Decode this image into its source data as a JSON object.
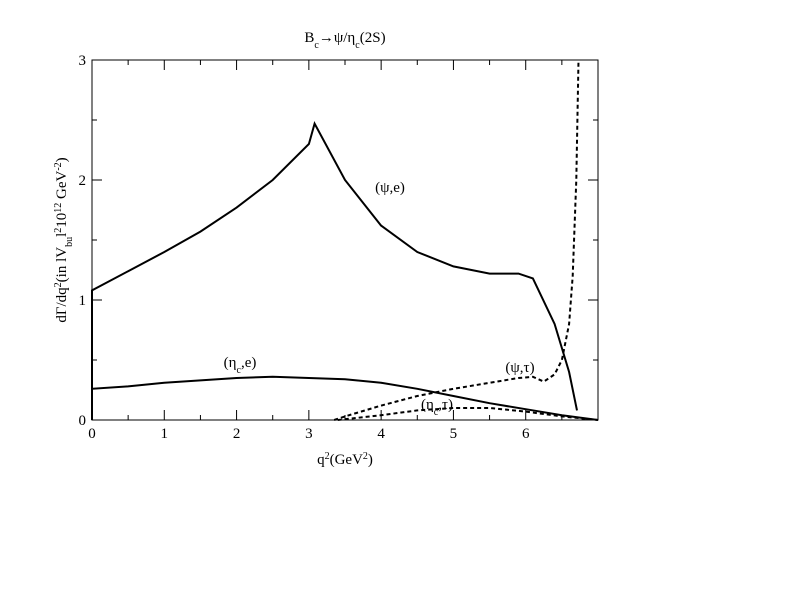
{
  "chart_data": {
    "type": "line",
    "title": [
      {
        "t": "B"
      },
      {
        "t": "c",
        "s": "sub"
      },
      {
        "t": "→ψ/η"
      },
      {
        "t": "c",
        "s": "sub"
      },
      {
        "t": "(2S)"
      }
    ],
    "x_label": [
      {
        "t": "q"
      },
      {
        "t": "2",
        "s": "sup"
      },
      {
        "t": "(GeV"
      },
      {
        "t": "2",
        "s": "sup"
      },
      {
        "t": ")"
      }
    ],
    "y_label": [
      {
        "t": "dΓ/dq"
      },
      {
        "t": "2",
        "s": "sup"
      },
      {
        "t": "(in lV"
      },
      {
        "t": "bu",
        "s": "sub"
      },
      {
        "t": "l"
      },
      {
        "t": "2",
        "s": "sup"
      },
      {
        "t": "10"
      },
      {
        "t": "12",
        "s": "sup"
      },
      {
        "t": " GeV"
      },
      {
        "t": "-2",
        "s": "sup"
      },
      {
        "t": ")"
      }
    ],
    "xlim": [
      0,
      7
    ],
    "ylim": [
      0,
      3
    ],
    "xticks": [
      0,
      1,
      2,
      3,
      4,
      5,
      6
    ],
    "yticks": [
      0,
      1,
      2,
      3
    ],
    "xminorticks": [
      0.5,
      1.5,
      2.5,
      3.5,
      4.5,
      5.5,
      6.5
    ],
    "yminorticks": [
      0.5,
      1.5,
      2.5
    ],
    "series": [
      {
        "name": [
          {
            "t": "(ψ,e)"
          }
        ],
        "color": "#000",
        "dash": false,
        "x": [
          0,
          0,
          0.5,
          1,
          1.5,
          2,
          2.5,
          3,
          3.08,
          3.5,
          4,
          4.5,
          5,
          5.5,
          5.9,
          6.1,
          6.4,
          6.6,
          6.71
        ],
        "values": [
          0,
          1.08,
          1.24,
          1.4,
          1.57,
          1.77,
          2.0,
          2.3,
          2.47,
          2.0,
          1.62,
          1.4,
          1.28,
          1.22,
          1.22,
          1.18,
          0.8,
          0.4,
          0.08
        ]
      },
      {
        "name": [
          {
            "t": "(η"
          },
          {
            "t": "c",
            "s": "sub"
          },
          {
            "t": ",e)"
          }
        ],
        "color": "#000",
        "dash": false,
        "x": [
          0,
          0,
          0.5,
          1,
          1.5,
          2,
          2.5,
          3,
          3.5,
          4,
          4.5,
          5,
          5.5,
          6,
          6.5,
          7
        ],
        "values": [
          0,
          0.26,
          0.28,
          0.31,
          0.33,
          0.35,
          0.36,
          0.35,
          0.34,
          0.31,
          0.26,
          0.2,
          0.14,
          0.09,
          0.04,
          0
        ]
      },
      {
        "name": [
          {
            "t": "(ψ,τ)"
          }
        ],
        "color": "#000",
        "dash": true,
        "x": [
          3.35,
          3.5,
          4,
          4.5,
          5,
          5.5,
          5.9,
          6.1,
          6.25,
          6.4,
          6.5,
          6.6,
          6.65,
          6.7,
          6.73
        ],
        "values": [
          0,
          0.03,
          0.12,
          0.2,
          0.26,
          0.31,
          0.35,
          0.36,
          0.32,
          0.38,
          0.5,
          0.8,
          1.2,
          2.0,
          3.0
        ]
      },
      {
        "name": [
          {
            "t": "(η"
          },
          {
            "t": "c",
            "s": "sub"
          },
          {
            "t": ",τ)"
          }
        ],
        "color": "#000",
        "dash": true,
        "x": [
          3.4,
          4,
          4.5,
          5,
          5.5,
          6,
          6.5,
          7
        ],
        "values": [
          0,
          0.04,
          0.08,
          0.1,
          0.1,
          0.07,
          0.03,
          0
        ]
      }
    ]
  }
}
